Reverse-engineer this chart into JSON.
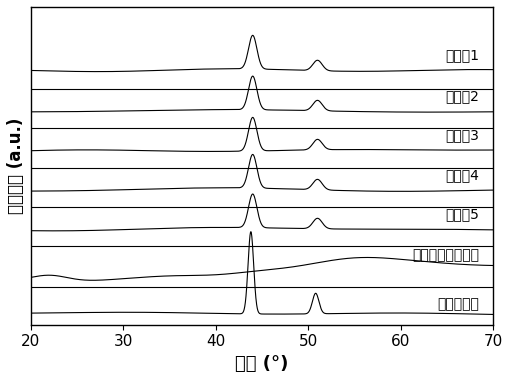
{
  "xlim": [
    20,
    70
  ],
  "xlabel": "角度 (°)",
  "ylabel": "相对强度（a.u.）",
  "ylabel_plain": "相对强度 (a.u.)",
  "background_color": "#ffffff",
  "labels": [
    "实施例1",
    "实施例2",
    "实施例3",
    "实施例4",
    "实施例5",
    "手型聚席夫碗铁盐",
    "纳米多孔碳"
  ],
  "offsets": [
    6.5,
    5.4,
    4.35,
    3.3,
    2.25,
    1.15,
    0.0
  ],
  "sep_lines_y": [
    6.0,
    4.95,
    3.9,
    2.85,
    1.8,
    0.72
  ],
  "peak1": 44.0,
  "peak2": 51.0,
  "peak_nano1": 43.8,
  "peak_nano2": 50.8,
  "line_color": "#000000",
  "font_size_ylabel": 12,
  "font_size_xlabel": 13,
  "font_size_tick": 11,
  "font_size_annot": 10,
  "sep_line_color": "#000000"
}
